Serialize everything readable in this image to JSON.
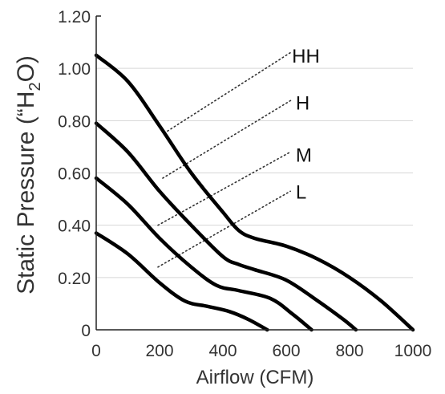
{
  "chart_data": {
    "type": "line",
    "xlabel": "Airflow (CFM)",
    "ylabel": "Static Pressure (\"H2O)",
    "ylabel_parts": {
      "before": "Static Pressure (“H",
      "sub": "2",
      "after": "O)"
    },
    "xlim": [
      0,
      1000
    ],
    "ylim": [
      0,
      1.2
    ],
    "x_ticks": [
      0,
      200,
      400,
      600,
      800,
      1000
    ],
    "x_tick_labels": [
      "0",
      "200",
      "400",
      "600",
      "800",
      "1000"
    ],
    "y_ticks": [
      0,
      0.2,
      0.4,
      0.6,
      0.8,
      1.0,
      1.2
    ],
    "y_tick_labels": [
      "0",
      "0.20",
      "0.40",
      "0.60",
      "0.80",
      "1.00",
      "1.20"
    ],
    "grid": "horizontal",
    "series": [
      {
        "name": "HH",
        "label_point": [
          618,
          1.05
        ],
        "points": [
          [
            0,
            1.05
          ],
          [
            100,
            0.95
          ],
          [
            200,
            0.78
          ],
          [
            300,
            0.6
          ],
          [
            400,
            0.45
          ],
          [
            450,
            0.38
          ],
          [
            500,
            0.35
          ],
          [
            600,
            0.32
          ],
          [
            700,
            0.27
          ],
          [
            800,
            0.2
          ],
          [
            900,
            0.11
          ],
          [
            1000,
            0.0
          ]
        ]
      },
      {
        "name": "H",
        "label_point": [
          630,
          0.87
        ],
        "points": [
          [
            0,
            0.79
          ],
          [
            100,
            0.68
          ],
          [
            200,
            0.53
          ],
          [
            300,
            0.4
          ],
          [
            400,
            0.28
          ],
          [
            450,
            0.25
          ],
          [
            500,
            0.23
          ],
          [
            600,
            0.19
          ],
          [
            700,
            0.11
          ],
          [
            780,
            0.04
          ],
          [
            820,
            0.0
          ]
        ]
      },
      {
        "name": "M",
        "label_point": [
          630,
          0.67
        ],
        "points": [
          [
            0,
            0.58
          ],
          [
            100,
            0.48
          ],
          [
            200,
            0.35
          ],
          [
            300,
            0.24
          ],
          [
            380,
            0.17
          ],
          [
            450,
            0.15
          ],
          [
            550,
            0.12
          ],
          [
            620,
            0.06
          ],
          [
            680,
            0.0
          ]
        ]
      },
      {
        "name": "L",
        "label_point": [
          630,
          0.53
        ],
        "points": [
          [
            0,
            0.37
          ],
          [
            100,
            0.29
          ],
          [
            200,
            0.18
          ],
          [
            280,
            0.11
          ],
          [
            350,
            0.09
          ],
          [
            420,
            0.07
          ],
          [
            480,
            0.04
          ],
          [
            540,
            0.0
          ]
        ]
      }
    ],
    "reference_line": {
      "style": "dotted",
      "points": [
        [
          250,
          0.79
        ],
        [
          615,
          1.05
        ]
      ]
    },
    "reference_lines": [
      {
        "name": "HH",
        "points": [
          [
            225,
            0.76
          ],
          [
            613,
            1.06
          ]
        ]
      },
      {
        "name": "H",
        "points": [
          [
            210,
            0.58
          ],
          [
            618,
            0.88
          ]
        ]
      },
      {
        "name": "M",
        "points": [
          [
            195,
            0.4
          ],
          [
            613,
            0.68
          ]
        ]
      },
      {
        "name": "L",
        "points": [
          [
            195,
            0.24
          ],
          [
            613,
            0.53
          ]
        ]
      }
    ]
  }
}
